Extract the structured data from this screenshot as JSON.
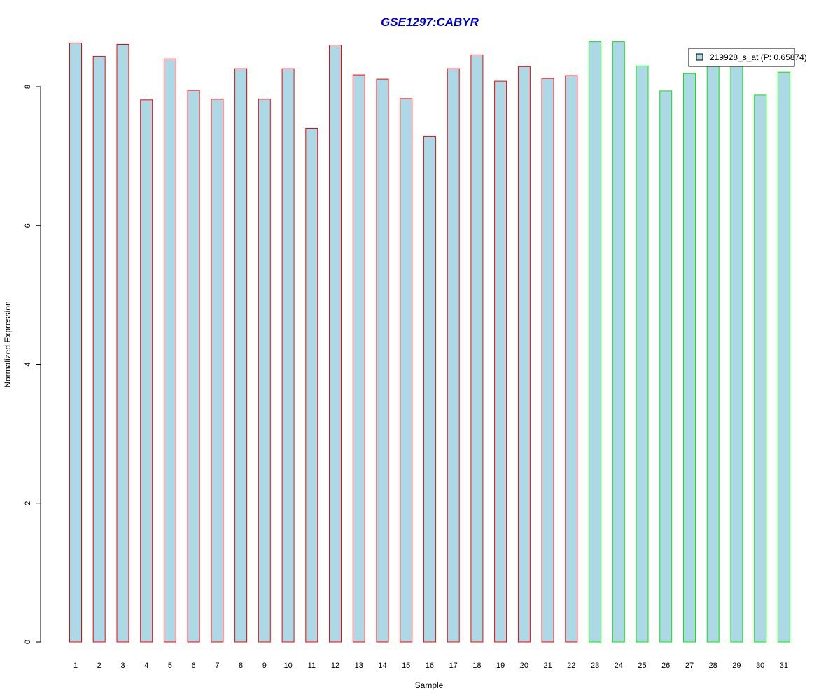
{
  "chart_data": {
    "type": "bar",
    "title": "GSE1297:CABYR",
    "title_color": "#0000cc",
    "xlabel": "Sample",
    "ylabel": "Normalized Expression",
    "ylim": [
      0,
      8.7
    ],
    "yticks": [
      0,
      2,
      4,
      6,
      8
    ],
    "categories": [
      "1",
      "2",
      "3",
      "4",
      "5",
      "6",
      "7",
      "8",
      "9",
      "10",
      "11",
      "12",
      "13",
      "14",
      "15",
      "16",
      "17",
      "18",
      "19",
      "20",
      "21",
      "22",
      "23",
      "24",
      "25",
      "26",
      "27",
      "28",
      "29",
      "30",
      "31"
    ],
    "values": [
      8.63,
      8.44,
      8.61,
      7.81,
      8.4,
      7.95,
      7.82,
      8.26,
      7.82,
      8.26,
      7.4,
      8.6,
      8.17,
      8.11,
      7.83,
      7.29,
      8.26,
      8.46,
      8.08,
      8.29,
      8.12,
      8.16,
      8.65,
      8.65,
      8.3,
      7.94,
      8.19,
      8.32,
      8.3,
      7.88,
      8.21
    ],
    "groups": [
      "a",
      "a",
      "a",
      "a",
      "a",
      "a",
      "a",
      "a",
      "a",
      "a",
      "a",
      "a",
      "a",
      "a",
      "a",
      "a",
      "a",
      "a",
      "a",
      "a",
      "a",
      "a",
      "b",
      "b",
      "b",
      "b",
      "b",
      "b",
      "b",
      "b",
      "b"
    ],
    "group_colors": {
      "a": "#ff0000",
      "b": "#00ee00"
    },
    "bar_fill": "#add8e6",
    "grid": false,
    "legend": {
      "position": "top-right",
      "entries": [
        {
          "label": "219928_s_at (P: 0.65874)",
          "color": "#add8e6"
        }
      ]
    }
  }
}
